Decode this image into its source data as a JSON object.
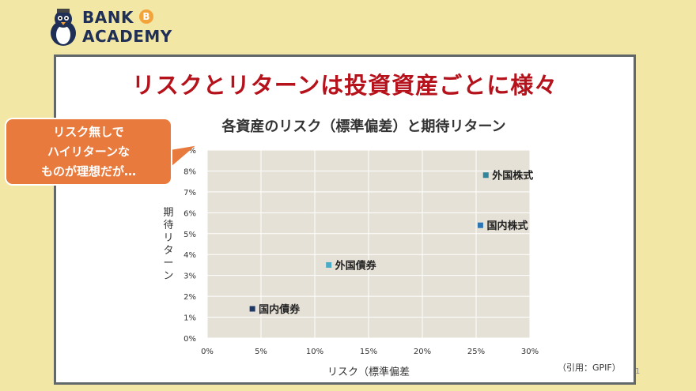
{
  "logo": {
    "line1": "BANK",
    "line2": "ACADEMY",
    "coin": "B"
  },
  "slide_title": "リスクとリターンは投資資産ごとに様々",
  "callout_lines": [
    "リスク無しで",
    "ハイリターンな",
    "ものが理想だが…"
  ],
  "source": "（引用：GPIF）",
  "page_number": "1",
  "colors": {
    "plot_bg": "#e6e1d6",
    "title": "#b5121b",
    "callout": "#e87a3d"
  },
  "chart_data": {
    "type": "scatter",
    "title": "各資産のリスク（標準偏差）と期待リターン",
    "xlabel": "リスク（標準偏差",
    "ylabel": "期待リターン",
    "xlim": [
      0,
      30
    ],
    "ylim": [
      0,
      9
    ],
    "x_ticks": [
      "0%",
      "5%",
      "10%",
      "15%",
      "20%",
      "25%",
      "30%"
    ],
    "y_ticks": [
      "0%",
      "1%",
      "2%",
      "3%",
      "4%",
      "5%",
      "6%",
      "7%",
      "8%",
      "9%"
    ],
    "grid": true,
    "points": [
      {
        "label": "国内債券",
        "x": 4.2,
        "y": 1.4,
        "color": "#1f3864"
      },
      {
        "label": "外国債券",
        "x": 11.3,
        "y": 3.5,
        "color": "#4bacc6"
      },
      {
        "label": "国内株式",
        "x": 25.4,
        "y": 5.4,
        "color": "#2e75b6"
      },
      {
        "label": "外国株式",
        "x": 25.9,
        "y": 7.8,
        "color": "#31859c"
      }
    ]
  }
}
